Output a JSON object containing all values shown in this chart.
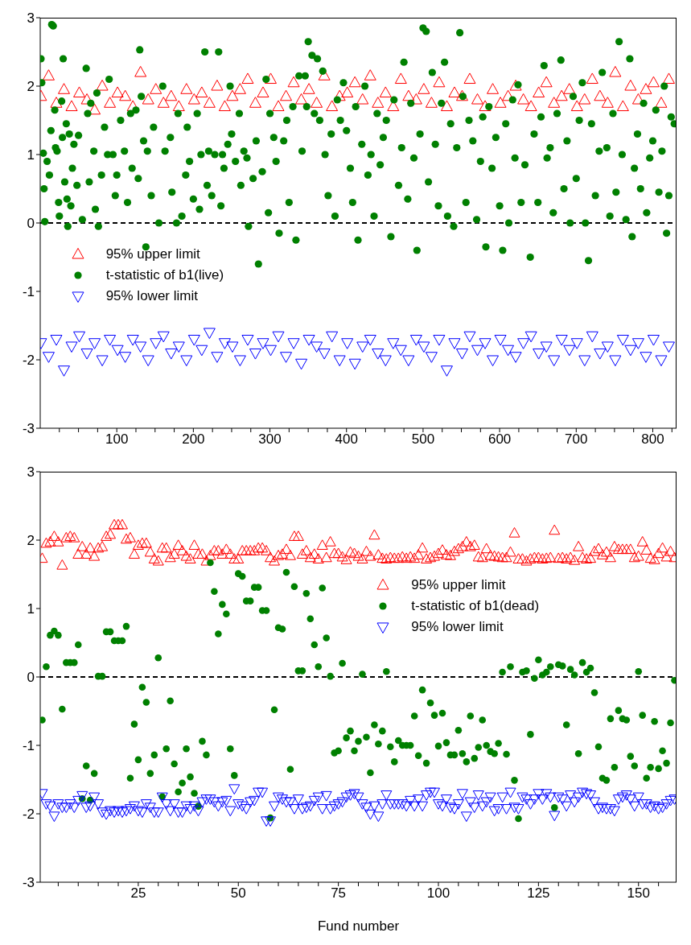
{
  "chart_data": [
    {
      "type": "scatter",
      "xlim": [
        0,
        831
      ],
      "ylim": [
        -3,
        3
      ],
      "yticks": [
        -3,
        -2,
        -1,
        0,
        1,
        2,
        3
      ],
      "xticks": [
        {
          "value": 25,
          "label": null
        },
        {
          "value": 50,
          "label": null
        },
        {
          "value": 75,
          "label": null
        },
        100,
        {
          "value": 125,
          "label": null
        },
        {
          "value": 150,
          "label": null
        },
        {
          "value": 175,
          "label": null
        },
        200,
        {
          "value": 225,
          "label": null
        },
        {
          "value": 250,
          "label": null
        },
        {
          "value": 275,
          "label": null
        },
        300,
        {
          "value": 325,
          "label": null
        },
        {
          "value": 350,
          "label": null
        },
        {
          "value": 375,
          "label": null
        },
        400,
        {
          "value": 425,
          "label": null
        },
        {
          "value": 450,
          "label": null
        },
        {
          "value": 475,
          "label": null
        },
        500,
        {
          "value": 525,
          "label": null
        },
        {
          "value": 550,
          "label": null
        },
        {
          "value": 575,
          "label": null
        },
        600,
        {
          "value": 625,
          "label": null
        },
        {
          "value": 650,
          "label": null
        },
        {
          "value": 675,
          "label": null
        },
        700,
        {
          "value": 725,
          "label": null
        },
        {
          "value": 750,
          "label": null
        },
        {
          "value": 775,
          "label": null
        },
        800,
        {
          "value": 825,
          "label": null
        }
      ],
      "grid": false,
      "legend": "left",
      "ref_lines": [
        {
          "axis": "y",
          "value": 0,
          "label": null,
          "color": "#000000",
          "line_style": "dashed"
        }
      ],
      "series": [
        {
          "name": "95% upper limit",
          "color": "#ff0000",
          "marker": "triangle",
          "x": [
            1,
            11,
            21,
            31,
            41,
            51,
            61,
            71,
            81,
            91,
            101,
            111,
            121,
            131,
            141,
            151,
            161,
            171,
            181,
            191,
            201,
            211,
            221,
            231,
            241,
            251,
            261,
            271,
            281,
            291,
            301,
            311,
            321,
            331,
            341,
            351,
            361,
            371,
            381,
            391,
            401,
            411,
            421,
            431,
            441,
            451,
            461,
            471,
            481,
            491,
            501,
            511,
            521,
            531,
            541,
            551,
            561,
            571,
            581,
            591,
            601,
            611,
            621,
            631,
            641,
            651,
            661,
            671,
            681,
            691,
            701,
            711,
            721,
            731,
            741,
            751,
            761,
            771,
            781,
            791,
            801,
            811,
            821
          ],
          "values": [
            1.85,
            2.15,
            1.75,
            1.95,
            1.7,
            1.9,
            1.8,
            1.65,
            2.0,
            1.75,
            1.9,
            1.85,
            1.7,
            2.2,
            1.8,
            1.95,
            1.75,
            1.85,
            1.7,
            1.95,
            1.8,
            1.9,
            1.75,
            2.0,
            1.7,
            1.85,
            1.95,
            2.1,
            1.75,
            1.9,
            2.1,
            1.7,
            1.85,
            2.05,
            1.8,
            1.95,
            1.75,
            2.15,
            1.7,
            1.85,
            1.9,
            2.05,
            1.8,
            2.15,
            1.75,
            1.9,
            1.7,
            2.1,
            1.85,
            1.8,
            1.95,
            1.75,
            2.05,
            1.7,
            1.9,
            1.85,
            2.1,
            1.8,
            1.7,
            1.95,
            1.75,
            1.85,
            2.0,
            1.8,
            1.7,
            1.9,
            2.05,
            1.75,
            1.85,
            1.95,
            1.7,
            1.8,
            2.1,
            1.85,
            1.75,
            2.2,
            1.7,
            2.0,
            1.8,
            1.95,
            2.05,
            1.75,
            2.1
          ]
        },
        {
          "name": "t-statistic of b1(live)",
          "color": "#008000",
          "marker": "circle",
          "x": [
            1,
            2,
            4,
            5,
            6,
            9,
            12,
            14,
            15,
            17,
            19,
            20,
            22,
            24,
            25,
            28,
            29,
            30,
            32,
            34,
            35,
            36,
            38,
            40,
            42,
            44,
            48,
            50,
            55,
            60,
            62,
            64,
            66,
            70,
            72,
            74,
            76,
            80,
            84,
            88,
            90,
            95,
            98,
            100,
            105,
            110,
            114,
            118,
            120,
            125,
            128,
            130,
            132,
            135,
            138,
            140,
            145,
            148,
            155,
            160,
            163,
            170,
            172,
            178,
            180,
            185,
            190,
            192,
            195,
            200,
            205,
            208,
            210,
            215,
            218,
            220,
            224,
            228,
            233,
            236,
            238,
            240,
            245,
            248,
            250,
            255,
            260,
            262,
            266,
            270,
            272,
            278,
            282,
            285,
            290,
            295,
            298,
            300,
            305,
            308,
            312,
            318,
            322,
            325,
            330,
            334,
            338,
            342,
            346,
            348,
            350,
            355,
            358,
            362,
            365,
            369,
            372,
            376,
            380,
            385,
            388,
            392,
            396,
            400,
            405,
            408,
            412,
            415,
            420,
            424,
            428,
            432,
            436,
            440,
            444,
            448,
            452,
            458,
            462,
            468,
            472,
            475,
            480,
            484,
            488,
            492,
            496,
            500,
            504,
            507,
            512,
            516,
            520,
            524,
            528,
            532,
            536,
            540,
            544,
            548,
            552,
            556,
            560,
            565,
            570,
            575,
            578,
            582,
            586,
            590,
            595,
            600,
            604,
            608,
            612,
            617,
            620,
            624,
            628,
            633,
            640,
            645,
            650,
            654,
            658,
            662,
            666,
            670,
            675,
            680,
            684,
            688,
            692,
            696,
            700,
            704,
            708,
            712,
            716,
            720,
            725,
            730,
            734,
            740,
            744,
            748,
            752,
            756,
            760,
            765,
            770,
            773,
            776,
            780,
            784,
            788,
            792,
            796,
            800,
            804,
            808,
            812,
            815,
            818,
            821,
            824,
            828
          ],
          "values": [
            2.4,
            2.05,
            1.02,
            0.5,
            0.02,
            0.9,
            0.7,
            1.35,
            2.9,
            2.88,
            1.65,
            1.1,
            1.05,
            0.3,
            0.1,
            1.78,
            1.25,
            2.4,
            0.6,
            1.45,
            0.35,
            -0.05,
            1.3,
            0.25,
            0.8,
            1.15,
            0.55,
            1.28,
            0.05,
            2.26,
            1.6,
            0.6,
            1.75,
            1.05,
            0.2,
            1.9,
            -0.05,
            0.7,
            1.4,
            1.0,
            2.1,
            1.0,
            0.4,
            0.7,
            1.5,
            1.05,
            0.3,
            1.6,
            0.8,
            1.65,
            0.65,
            2.53,
            1.85,
            1.2,
            -0.35,
            1.05,
            0.4,
            1.4,
            0.0,
            2.0,
            1.05,
            1.25,
            0.45,
            0.0,
            1.6,
            0.1,
            0.7,
            1.4,
            0.9,
            0.35,
            1.6,
            0.2,
            1.0,
            2.5,
            0.55,
            1.05,
            0.4,
            1.0,
            2.5,
            0.25,
            1.0,
            0.8,
            1.15,
            2.0,
            1.3,
            0.9,
            1.6,
            0.55,
            1.05,
            0.95,
            -0.05,
            0.65,
            1.2,
            -0.6,
            0.75,
            2.1,
            0.15,
            1.6,
            1.25,
            0.9,
            -0.15,
            1.2,
            1.5,
            0.3,
            1.7,
            -0.25,
            2.15,
            1.05,
            2.15,
            1.7,
            2.65,
            2.45,
            1.6,
            2.4,
            1.5,
            2.22,
            1.0,
            0.4,
            1.3,
            0.1,
            1.8,
            1.5,
            2.05,
            1.35,
            0.8,
            0.3,
            1.7,
            -0.25,
            1.15,
            2.0,
            0.7,
            1.0,
            0.1,
            1.6,
            0.85,
            1.25,
            1.5,
            -0.2,
            1.8,
            0.55,
            1.1,
            2.35,
            0.35,
            1.75,
            0.95,
            -0.4,
            1.3,
            2.85,
            2.8,
            0.6,
            2.2,
            1.15,
            0.25,
            1.75,
            2.35,
            0.1,
            1.45,
            -0.05,
            1.1,
            2.78,
            1.85,
            0.3,
            1.5,
            1.2,
            0.05,
            0.9,
            1.55,
            -0.35,
            1.7,
            0.8,
            1.25,
            0.25,
            -0.4,
            1.45,
            0.0,
            1.8,
            0.95,
            2.02,
            0.3,
            0.85,
            -0.5,
            1.3,
            0.3,
            1.55,
            2.3,
            0.95,
            1.1,
            0.15,
            1.6,
            2.38,
            0.5,
            1.2,
            0.0,
            1.85,
            0.65,
            1.5,
            2.05,
            0.0,
            -0.55,
            1.45,
            0.4,
            1.05,
            2.2,
            1.1,
            0.1,
            1.6,
            0.45,
            2.65,
            1.0,
            0.05,
            2.4,
            -0.2,
            0.8,
            1.3,
            0.5,
            1.75,
            0.15,
            0.95,
            1.2,
            1.65,
            0.45,
            1.05,
            2.0,
            -0.15,
            0.4,
            1.55,
            1.45
          ]
        },
        {
          "name": "95% lower limit",
          "color": "#0000ff",
          "marker": "triangle-down",
          "x": [
            1,
            11,
            21,
            31,
            41,
            51,
            61,
            71,
            81,
            91,
            101,
            111,
            121,
            131,
            141,
            151,
            161,
            171,
            181,
            191,
            201,
            211,
            221,
            231,
            241,
            251,
            261,
            271,
            281,
            291,
            301,
            311,
            321,
            331,
            341,
            351,
            361,
            371,
            381,
            391,
            401,
            411,
            421,
            431,
            441,
            451,
            461,
            471,
            481,
            491,
            501,
            511,
            521,
            531,
            541,
            551,
            561,
            571,
            581,
            591,
            601,
            611,
            621,
            631,
            641,
            651,
            661,
            671,
            681,
            691,
            701,
            711,
            721,
            731,
            741,
            751,
            761,
            771,
            781,
            791,
            801,
            811,
            821
          ],
          "values": [
            -1.75,
            -1.95,
            -1.7,
            -2.15,
            -1.8,
            -1.65,
            -1.9,
            -1.75,
            -2.0,
            -1.7,
            -1.85,
            -1.95,
            -1.7,
            -1.8,
            -2.0,
            -1.75,
            -1.65,
            -1.9,
            -1.8,
            -2.0,
            -1.7,
            -1.85,
            -1.6,
            -1.95,
            -1.75,
            -1.8,
            -2.0,
            -1.7,
            -1.9,
            -1.75,
            -1.85,
            -1.65,
            -1.95,
            -1.75,
            -2.05,
            -1.7,
            -1.8,
            -1.9,
            -1.65,
            -2.0,
            -1.75,
            -2.05,
            -1.8,
            -1.7,
            -1.9,
            -2.0,
            -1.75,
            -1.85,
            -2.0,
            -1.7,
            -1.8,
            -1.95,
            -1.7,
            -2.15,
            -1.75,
            -1.9,
            -1.65,
            -1.85,
            -1.75,
            -2.0,
            -1.7,
            -1.85,
            -1.95,
            -1.75,
            -1.65,
            -1.9,
            -1.8,
            -2.0,
            -1.7,
            -1.85,
            -1.75,
            -2.0,
            -1.65,
            -1.9,
            -1.8,
            -2.0,
            -1.7,
            -1.85,
            -1.75,
            -1.95,
            -1.7,
            -2.0,
            -1.8
          ]
        }
      ]
    },
    {
      "type": "scatter",
      "xlim": [
        0.5,
        159.5
      ],
      "ylim": [
        -3,
        3
      ],
      "yticks": [
        -3,
        -2,
        -1,
        0,
        1,
        2,
        3
      ],
      "xticks": [
        {
          "value": 5,
          "label": null
        },
        {
          "value": 10,
          "label": null
        },
        {
          "value": 15,
          "label": null
        },
        {
          "value": 20,
          "label": null
        },
        25,
        {
          "value": 30,
          "label": null
        },
        {
          "value": 35,
          "label": null
        },
        {
          "value": 40,
          "label": null
        },
        {
          "value": 45,
          "label": null
        },
        50,
        {
          "value": 55,
          "label": null
        },
        {
          "value": 60,
          "label": null
        },
        {
          "value": 65,
          "label": null
        },
        {
          "value": 70,
          "label": null
        },
        75,
        {
          "value": 80,
          "label": null
        },
        {
          "value": 85,
          "label": null
        },
        {
          "value": 90,
          "label": null
        },
        {
          "value": 95,
          "label": null
        },
        100,
        {
          "value": 105,
          "label": null
        },
        {
          "value": 110,
          "label": null
        },
        {
          "value": 115,
          "label": null
        },
        {
          "value": 120,
          "label": null
        },
        125,
        {
          "value": 130,
          "label": null
        },
        {
          "value": 135,
          "label": null
        },
        {
          "value": 140,
          "label": null
        },
        {
          "value": 145,
          "label": null
        },
        150,
        {
          "value": 155,
          "label": null
        }
      ],
      "xlabel": "Fund number",
      "grid": false,
      "legend": "right",
      "ref_lines": [
        {
          "axis": "y",
          "value": 0,
          "label": null,
          "color": "#000000",
          "line_style": "dashed"
        }
      ],
      "series": [
        {
          "name": "95% upper limit",
          "color": "#ff0000",
          "marker": "triangle",
          "x": [
            1,
            2,
            3,
            4,
            5,
            6,
            7,
            8,
            9,
            10,
            11,
            12,
            13,
            14,
            15,
            16,
            17,
            18,
            19,
            20,
            21,
            22,
            23,
            24,
            25,
            26,
            27,
            28,
            29,
            30,
            31,
            32,
            33,
            34,
            35,
            36,
            37,
            38,
            39,
            40,
            41,
            42,
            43,
            44,
            45,
            46,
            47,
            48,
            49,
            50,
            51,
            52,
            53,
            54,
            55,
            56,
            57,
            58,
            59,
            60,
            61,
            62,
            63,
            64,
            65,
            66,
            67,
            68,
            69,
            70,
            71,
            72,
            73,
            74,
            75,
            76,
            77,
            78,
            79,
            80,
            81,
            82,
            83,
            84,
            85,
            86,
            87,
            88,
            89,
            90,
            91,
            92,
            93,
            94,
            95,
            96,
            97,
            98,
            99,
            100,
            101,
            102,
            103,
            104,
            105,
            106,
            107,
            108,
            109,
            110,
            111,
            112,
            113,
            114,
            115,
            116,
            117,
            118,
            119,
            120,
            121,
            122,
            123,
            124,
            125,
            126,
            127,
            128,
            129,
            130,
            131,
            132,
            133,
            134,
            135,
            136,
            137,
            138,
            139,
            140,
            141,
            142,
            143,
            144,
            145,
            146,
            147,
            148,
            149,
            150,
            151,
            152,
            153,
            154,
            155,
            156,
            157,
            158,
            159
          ],
          "values": [
            1.73,
            1.95,
            1.97,
            2.05,
            1.97,
            1.63,
            2.03,
            2.05,
            2.03,
            1.79,
            1.9,
            1.79,
            1.88,
            1.76,
            1.88,
            1.9,
            2.05,
            2.08,
            2.22,
            2.22,
            2.22,
            2.01,
            2.03,
            1.79,
            1.92,
            1.95,
            1.95,
            1.82,
            1.72,
            1.69,
            1.88,
            1.88,
            1.74,
            1.79,
            1.92,
            1.84,
            1.76,
            1.72,
            1.92,
            1.79,
            1.79,
            1.69,
            1.77,
            1.84,
            1.84,
            1.79,
            1.86,
            1.79,
            1.72,
            1.72,
            1.84,
            1.84,
            1.84,
            1.84,
            1.88,
            1.88,
            1.84,
            1.74,
            1.69,
            1.77,
            1.79,
            1.86,
            1.77,
            2.05,
            2.05,
            1.79,
            1.84,
            1.74,
            1.79,
            1.72,
            1.92,
            1.74,
            1.97,
            1.8,
            1.8,
            1.75,
            1.71,
            1.82,
            1.8,
            1.76,
            1.72,
            1.83,
            1.76,
            2.07,
            1.78,
            1.73,
            1.72,
            1.74,
            1.73,
            1.73,
            1.75,
            1.73,
            1.75,
            1.73,
            1.78,
            1.88,
            1.72,
            1.74,
            1.76,
            1.8,
            1.85,
            1.78,
            1.77,
            1.83,
            1.87,
            1.9,
            1.97,
            1.9,
            1.92,
            1.75,
            1.74,
            1.87,
            1.77,
            1.76,
            1.75,
            1.74,
            1.74,
            1.82,
            2.1,
            1.72,
            1.72,
            1.69,
            1.72,
            1.74,
            1.74,
            1.72,
            1.73,
            1.74,
            2.14,
            1.73,
            1.74,
            1.72,
            1.74,
            1.7,
            1.9,
            1.74,
            1.72,
            1.73,
            1.83,
            1.87,
            1.78,
            1.82,
            1.74,
            1.9,
            1.86,
            1.86,
            1.86,
            1.86,
            1.74,
            1.76,
            1.97,
            1.85,
            1.73,
            1.71,
            1.8,
            1.88,
            1.75,
            1.83,
            1.74
          ]
        },
        {
          "name": "t-statistic of b1(dead)",
          "color": "#008000",
          "marker": "circle",
          "x": [
            1,
            2,
            3,
            4,
            5,
            6,
            7,
            8,
            9,
            10,
            11,
            12,
            13,
            14,
            15,
            16,
            17,
            18,
            19,
            20,
            21,
            22,
            23,
            24,
            25,
            26,
            27,
            28,
            29,
            30,
            31,
            32,
            33,
            34,
            35,
            36,
            37,
            38,
            39,
            40,
            41,
            42,
            43,
            44,
            45,
            46,
            47,
            48,
            49,
            50,
            51,
            52,
            53,
            54,
            55,
            56,
            57,
            58,
            59,
            60,
            61,
            62,
            63,
            64,
            65,
            66,
            67,
            68,
            69,
            70,
            71,
            72,
            73,
            74,
            75,
            76,
            77,
            78,
            79,
            80,
            81,
            82,
            83,
            84,
            85,
            86,
            87,
            88,
            89,
            90,
            91,
            92,
            93,
            94,
            95,
            96,
            97,
            98,
            99,
            100,
            101,
            102,
            103,
            104,
            105,
            106,
            107,
            108,
            109,
            110,
            111,
            112,
            113,
            114,
            115,
            116,
            117,
            118,
            119,
            120,
            121,
            122,
            123,
            124,
            125,
            126,
            127,
            128,
            129,
            130,
            131,
            132,
            133,
            134,
            135,
            136,
            137,
            138,
            139,
            140,
            141,
            142,
            143,
            144,
            145,
            146,
            147,
            148,
            149,
            150,
            151,
            152,
            153,
            154,
            155,
            156,
            157,
            158,
            159
          ],
          "values": [
            -0.63,
            0.15,
            0.61,
            0.67,
            0.61,
            -0.47,
            0.21,
            0.21,
            0.21,
            0.47,
            -1.78,
            -1.3,
            -1.8,
            -1.41,
            0.01,
            0.01,
            0.66,
            0.66,
            0.53,
            0.53,
            0.53,
            0.74,
            -1.48,
            -0.69,
            -1.21,
            -0.15,
            -0.37,
            -1.41,
            -1.14,
            0.28,
            -1.75,
            -1.05,
            -0.35,
            -1.27,
            -1.68,
            -1.55,
            -1.05,
            -1.46,
            -1.7,
            -1.89,
            -0.94,
            -1.14,
            1.67,
            1.25,
            0.63,
            1.06,
            0.92,
            -1.05,
            -1.44,
            1.51,
            1.47,
            1.11,
            1.11,
            1.31,
            1.31,
            0.97,
            0.97,
            -2.06,
            -0.48,
            0.72,
            0.7,
            1.53,
            -1.35,
            1.32,
            0.09,
            0.09,
            1.22,
            0.85,
            0.47,
            0.15,
            1.3,
            0.57,
            0.01,
            -1.11,
            -1.08,
            0.2,
            -0.89,
            -0.79,
            -1.08,
            -0.94,
            0.04,
            -0.88,
            -1.4,
            -0.7,
            -0.98,
            -0.79,
            0.08,
            -1.02,
            -1.24,
            -0.93,
            -1.0,
            -1.0,
            -1.0,
            -0.57,
            -1.15,
            -0.19,
            -1.26,
            -0.38,
            -0.56,
            -1.01,
            -0.53,
            -0.96,
            -1.14,
            -1.14,
            -0.78,
            -1.12,
            -1.24,
            -0.57,
            -1.19,
            -1.03,
            -0.63,
            -1.0,
            -1.09,
            -1.12,
            -0.97,
            0.07,
            -1.13,
            0.15,
            -1.51,
            -2.07,
            0.07,
            0.09,
            -0.84,
            -0.02,
            0.25,
            0.03,
            0.07,
            0.15,
            -1.91,
            0.18,
            0.16,
            -0.7,
            0.11,
            0.03,
            -1.12,
            0.21,
            0.07,
            0.13,
            -0.23,
            -1.02,
            -1.48,
            -1.51,
            -0.61,
            -1.32,
            -0.49,
            -0.61,
            -0.63,
            -1.16,
            -1.3,
            0.08,
            -0.56,
            -1.48,
            -1.32,
            -0.65,
            -1.34,
            -1.08,
            -1.26,
            -0.67,
            -0.05
          ]
        },
        {
          "name": "95% lower limit",
          "color": "#0000ff",
          "marker": "triangle-down",
          "x": [
            1,
            2,
            3,
            4,
            5,
            6,
            7,
            8,
            9,
            10,
            11,
            12,
            13,
            14,
            15,
            16,
            17,
            18,
            19,
            20,
            21,
            22,
            23,
            24,
            25,
            26,
            27,
            28,
            29,
            30,
            31,
            32,
            33,
            34,
            35,
            36,
            37,
            38,
            39,
            40,
            41,
            42,
            43,
            44,
            45,
            46,
            47,
            48,
            49,
            50,
            51,
            52,
            53,
            54,
            55,
            56,
            57,
            58,
            59,
            60,
            61,
            62,
            63,
            64,
            65,
            66,
            67,
            68,
            69,
            70,
            71,
            72,
            73,
            74,
            75,
            76,
            77,
            78,
            79,
            80,
            81,
            82,
            83,
            84,
            85,
            86,
            87,
            88,
            89,
            90,
            91,
            92,
            93,
            94,
            95,
            96,
            97,
            98,
            99,
            100,
            101,
            102,
            103,
            104,
            105,
            106,
            107,
            108,
            109,
            110,
            111,
            112,
            113,
            114,
            115,
            116,
            117,
            118,
            119,
            120,
            121,
            122,
            123,
            124,
            125,
            126,
            127,
            128,
            129,
            130,
            131,
            132,
            133,
            134,
            135,
            136,
            137,
            138,
            139,
            140,
            141,
            142,
            143,
            144,
            145,
            146,
            147,
            148,
            149,
            150,
            151,
            152,
            153,
            154,
            155,
            156,
            157,
            158,
            159
          ],
          "values": [
            -1.7,
            -1.85,
            -1.88,
            -2.03,
            -1.85,
            -1.9,
            -1.9,
            -1.85,
            -1.9,
            -1.8,
            -1.73,
            -1.9,
            -1.88,
            -1.75,
            -1.85,
            -1.97,
            -2.0,
            -1.95,
            -1.97,
            -1.95,
            -1.97,
            -1.95,
            -1.92,
            -1.88,
            -1.95,
            -1.97,
            -1.85,
            -1.9,
            -1.97,
            -1.97,
            -1.75,
            -1.85,
            -1.95,
            -1.85,
            -1.97,
            -1.97,
            -1.88,
            -1.92,
            -1.88,
            -1.95,
            -1.82,
            -1.78,
            -1.78,
            -1.82,
            -1.88,
            -1.82,
            -1.8,
            -1.95,
            -1.63,
            -1.85,
            -1.88,
            -1.92,
            -1.82,
            -1.8,
            -1.68,
            -1.68,
            -2.1,
            -2.1,
            -1.88,
            -1.75,
            -1.78,
            -1.82,
            -1.82,
            -1.92,
            -1.78,
            -1.92,
            -1.9,
            -1.88,
            -1.8,
            -1.75,
            -1.92,
            -1.73,
            -1.92,
            -1.88,
            -1.85,
            -1.82,
            -1.75,
            -1.72,
            -1.7,
            -1.75,
            -1.85,
            -1.9,
            -2.0,
            -1.88,
            -2.03,
            -1.85,
            -1.72,
            -1.85,
            -1.85,
            -1.85,
            -1.85,
            -1.88,
            -1.8,
            -1.88,
            -1.78,
            -1.88,
            -1.72,
            -1.68,
            -1.68,
            -1.85,
            -1.88,
            -1.78,
            -1.9,
            -1.92,
            -1.85,
            -1.7,
            -2.03,
            -1.82,
            -1.9,
            -1.72,
            -1.88,
            -1.82,
            -1.75,
            -1.95,
            -1.92,
            -1.75,
            -1.92,
            -1.68,
            -1.9,
            -1.92,
            -1.75,
            -1.78,
            -1.85,
            -1.78,
            -1.7,
            -1.78,
            -1.7,
            -1.75,
            -2.02,
            -1.75,
            -1.78,
            -1.88,
            -1.72,
            -1.82,
            -1.75,
            -1.68,
            -1.7,
            -1.72,
            -1.82,
            -1.92,
            -1.9,
            -1.92,
            -1.92,
            -1.95,
            -1.78,
            -1.75,
            -1.72,
            -1.78,
            -1.88,
            -1.75,
            -1.85,
            -1.85,
            -1.9,
            -1.88,
            -1.92,
            -1.9,
            -1.85,
            -1.8,
            -1.78
          ]
        }
      ]
    }
  ]
}
